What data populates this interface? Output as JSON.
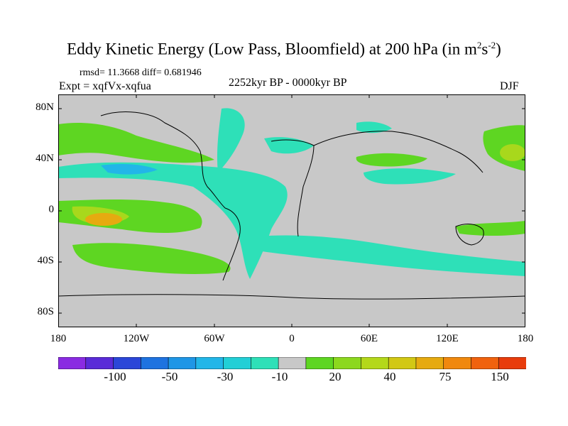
{
  "title": {
    "main": "Eddy Kinetic Energy (Low Pass, Bloomfield) at 200 hPa (in m",
    "sup1": "2",
    "mid": "s",
    "sup2": "-2",
    "end": ")"
  },
  "stats": "rmsd= 11.3668 diff= 0.681946",
  "expt": "Expt = xqfVx-xqfua",
  "period": "2252kyr BP - 0000kyr BP",
  "season": "DJF",
  "axes": {
    "y_ticks": [
      "80N",
      "40N",
      "0",
      "40S",
      "80S"
    ],
    "x_ticks": [
      "180",
      "120W",
      "60W",
      "0",
      "60E",
      "120E",
      "180"
    ]
  },
  "colorbar": {
    "labels": [
      "-100",
      "-50",
      "-30",
      "-10",
      "20",
      "40",
      "75",
      "150"
    ],
    "colors": [
      "#8a2be2",
      "#5a2bd8",
      "#2b46d8",
      "#1e73e0",
      "#1e96e6",
      "#22b6e8",
      "#22cfd6",
      "#2ee0b8",
      "#c8c8c8",
      "#5ed622",
      "#8cd81e",
      "#b4d81a",
      "#d2c814",
      "#e6aa10",
      "#f0880e",
      "#f0620e",
      "#e83c0c"
    ]
  },
  "colors": {
    "land_bg": "#c8c8c8",
    "positive_low": "#5ed622",
    "positive_mid": "#a8d81c",
    "positive_high": "#e6aa10",
    "negative_low": "#2ee0b8",
    "negative_mid": "#22b6e8"
  }
}
